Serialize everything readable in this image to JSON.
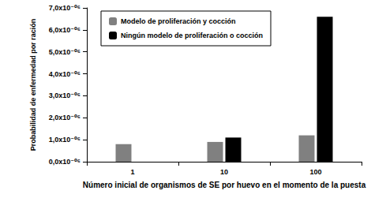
{
  "chart_data": {
    "type": "bar",
    "categories": [
      "1",
      "10",
      "100"
    ],
    "x_label": "Número inicial de organismos de SE por huevo en el momento de la puesta",
    "y_label": "Probabilidad de enfermedad por ración",
    "series": [
      {
        "name": "Modelo de proliferación y cocción",
        "color": "#808080",
        "values": [
          8e-07,
          9e-07,
          1.2e-06
        ]
      },
      {
        "name": "Ningún modelo de proliferación o cocción",
        "color": "#000000",
        "values": [
          0,
          1.1e-06,
          6.6e-06
        ]
      }
    ],
    "ylim": [
      0,
      7e-06
    ],
    "yticks": [
      {
        "value": 0,
        "label": "0,0x10⁻⁰⁶"
      },
      {
        "value": 1e-06,
        "label": "1,0x10⁻⁰⁶"
      },
      {
        "value": 2e-06,
        "label": "2,0x10⁻⁰⁶"
      },
      {
        "value": 3e-06,
        "label": "3,0x10⁻⁰⁶"
      },
      {
        "value": 4e-06,
        "label": "4,0x10⁻⁰⁶"
      },
      {
        "value": 5e-06,
        "label": "5,0x10⁻⁰⁶"
      },
      {
        "value": 6e-06,
        "label": "6,0x10⁻⁰⁶"
      },
      {
        "value": 7e-06,
        "label": "7,0x10⁻⁰⁶"
      }
    ],
    "legend": "upper left",
    "grid": false
  }
}
